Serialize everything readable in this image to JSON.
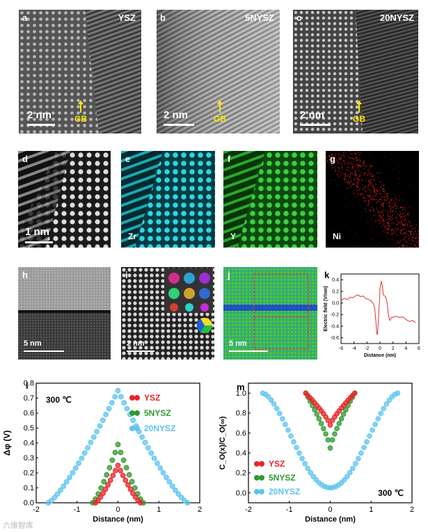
{
  "panels": {
    "a": {
      "letter": "a",
      "title": "YSZ",
      "gb": "GB",
      "scale": "2 nm"
    },
    "b": {
      "letter": "b",
      "title": "5NYSZ",
      "gb": "GB",
      "scale": "2 nm"
    },
    "c": {
      "letter": "c",
      "title": "20NYSZ",
      "gb": "GB",
      "scale": "2 nm"
    },
    "d": {
      "letter": "d",
      "scale": "1 nm"
    },
    "e": {
      "letter": "e",
      "element": "Zr"
    },
    "f": {
      "letter": "f",
      "element": "Y"
    },
    "g": {
      "letter": "g",
      "element": "Ni"
    },
    "h": {
      "letter": "h",
      "scale": "5 nm"
    },
    "i": {
      "letter": "i",
      "scale": "2 nm"
    },
    "j": {
      "letter": "j",
      "scale": "5 nm"
    },
    "k": {
      "letter": "k"
    },
    "l": {
      "letter": "l"
    },
    "m": {
      "letter": "m"
    }
  },
  "colors": {
    "ysz": "#e8242a",
    "n5": "#2f9a2f",
    "n20": "#5ec4ef",
    "ni": "#e02020",
    "zr": "#29c6d0",
    "y": "#39c23c",
    "field": "#e03030",
    "gbArrow": "#ffe600"
  },
  "watermark": "六维智库",
  "chart_data": [
    {
      "panel": "k",
      "type": "line",
      "xlabel": "Distance (nm)",
      "ylabel": "Electric field (V/nm)",
      "xlim": [
        -6,
        6
      ],
      "ylim": [
        -0.7,
        0.5
      ],
      "xticks": [
        -6,
        -4,
        -2,
        0,
        2,
        4,
        6
      ],
      "yticks": [
        -0.6,
        -0.4,
        -0.2,
        0.0,
        0.2,
        0.4
      ],
      "ytick_labels": [
        "-0.6",
        "-0.4",
        "-0.2",
        "0.0",
        "0.2",
        "0.4"
      ],
      "series": [
        {
          "x": [
            -6,
            -5.5,
            -5,
            -4.6,
            -4.2,
            -3.8,
            -3.4,
            -3,
            -2.6,
            -2.2,
            -1.8,
            -1.4,
            -1,
            -0.8,
            -0.6,
            -0.5,
            -0.4,
            -0.3,
            -0.1,
            0,
            0.2,
            0.35,
            0.5,
            0.7,
            0.9,
            1.1,
            1.3,
            1.5,
            1.8,
            2.2,
            2.6,
            3,
            3.4,
            3.8,
            4.2,
            4.6,
            5,
            5.5
          ],
          "y": [
            0.04,
            0.08,
            0.06,
            0.1,
            0.09,
            0.12,
            0.14,
            0.11,
            0.12,
            0.08,
            0.06,
            0.04,
            -0.02,
            -0.1,
            -0.35,
            -0.52,
            -0.55,
            -0.4,
            0.0,
            0.25,
            0.38,
            0.3,
            0.15,
            0.12,
            0.1,
            0.0,
            -0.2,
            -0.3,
            -0.25,
            -0.24,
            -0.23,
            -0.25,
            -0.24,
            -0.26,
            -0.3,
            -0.32,
            -0.3,
            -0.34
          ]
        }
      ]
    },
    {
      "panel": "l",
      "type": "scatter",
      "annotation": "300 ℃",
      "xlabel": "Distance (nm)",
      "ylabel": "Δφ (V)",
      "xlim": [
        -2,
        2
      ],
      "ylim": [
        0,
        0.8
      ],
      "xticks": [
        -2,
        -1,
        0,
        1,
        2
      ],
      "yticks": [
        0,
        0.1,
        0.2,
        0.3,
        0.4,
        0.5,
        0.6,
        0.7,
        0.8
      ],
      "ytick_labels": [
        "0.0",
        "0.1",
        "0.2",
        "0.3",
        "0.4",
        "0.5",
        "0.6",
        "0.7",
        "0.8"
      ],
      "legend_position": "top-right",
      "series": [
        {
          "name": "YSZ",
          "peak": 0.25,
          "halfwidth": 0.55
        },
        {
          "name": "5NYSZ",
          "peak": 0.39,
          "halfwidth": 0.62
        },
        {
          "name": "20NYSZ",
          "peak": 0.75,
          "halfwidth": 1.7
        }
      ]
    },
    {
      "panel": "m",
      "type": "scatter",
      "annotation": "300 ℃",
      "xlabel": "Distance (nm)",
      "ylabel": "C_O(x)/C_O(∞)",
      "xlim": [
        -2,
        2
      ],
      "ylim": [
        -0.1,
        1.1
      ],
      "xticks": [
        -2,
        -1,
        0,
        1,
        2
      ],
      "yticks": [
        0,
        0.2,
        0.4,
        0.6,
        0.8,
        1.0
      ],
      "ytick_labels": [
        "0.0",
        "0.2",
        "0.4",
        "0.6",
        "0.8",
        "1.0"
      ],
      "legend_position": "bottom-left",
      "series": [
        {
          "name": "YSZ",
          "min": 0.68,
          "halfwidth": 0.6
        },
        {
          "name": "5NYSZ",
          "min": 0.45,
          "halfwidth": 0.6
        },
        {
          "name": "20NYSZ",
          "min": 0.05,
          "halfwidth": 1.65
        }
      ]
    }
  ]
}
